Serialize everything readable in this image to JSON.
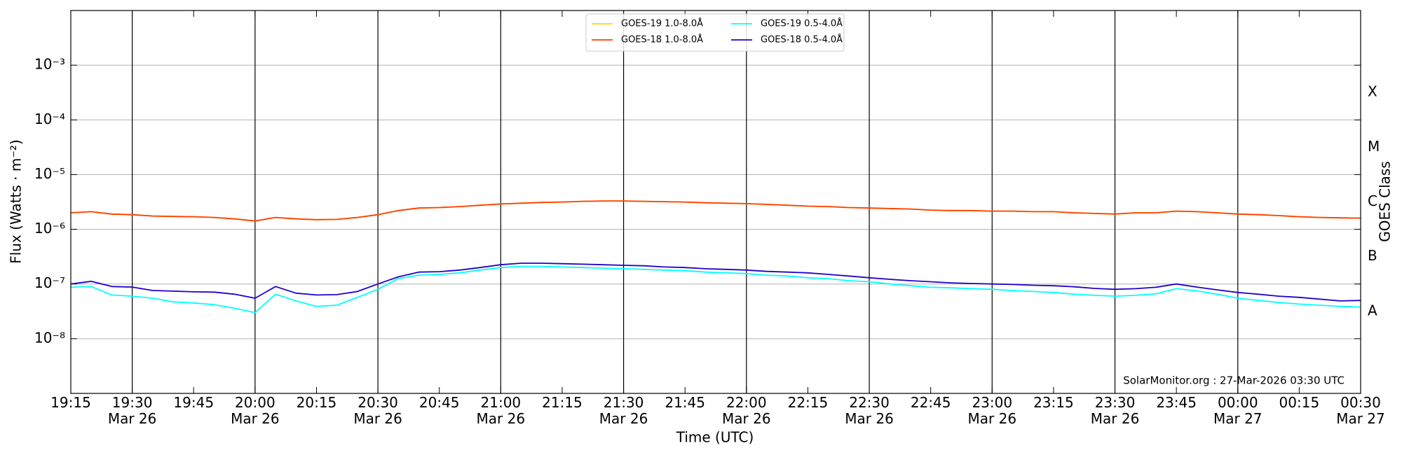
{
  "chart_data": {
    "type": "line",
    "xlabel": "Time (UTC)",
    "ylabel": "Flux (Watts · m⁻²)",
    "y2label": "GOES Class",
    "annotation": "SolarMonitor.org : 27-Mar-2026 03:30 UTC",
    "yscale": "log",
    "ylim": [
      1e-09,
      0.01
    ],
    "yticks": [
      {
        "value": 1e-08,
        "label": "10⁻⁸"
      },
      {
        "value": 1e-07,
        "label": "10⁻⁷"
      },
      {
        "value": 1e-06,
        "label": "10⁻⁶"
      },
      {
        "value": 1e-05,
        "label": "10⁻⁵"
      },
      {
        "value": 0.0001,
        "label": "10⁻⁴"
      },
      {
        "value": 0.001,
        "label": "10⁻³"
      }
    ],
    "y2lim": [
      1e-09,
      0.01
    ],
    "y2ticks": [
      {
        "value": 3.16e-08,
        "label": "A"
      },
      {
        "value": 3.16e-07,
        "label": "B"
      },
      {
        "value": 3.16e-06,
        "label": "C"
      },
      {
        "value": 3.16e-05,
        "label": "M"
      },
      {
        "value": 0.000316,
        "label": "X"
      }
    ],
    "xlim": [
      "Mar 26 19:15",
      "Mar 27 00:30"
    ],
    "xticks": [
      {
        "value": "Mar 26 19:15",
        "label": "19:15"
      },
      {
        "value": "Mar 26 19:30",
        "label": "19:30\nMar 26"
      },
      {
        "value": "Mar 26 19:45",
        "label": "19:45"
      },
      {
        "value": "Mar 26 20:00",
        "label": "20:00\nMar 26"
      },
      {
        "value": "Mar 26 20:15",
        "label": "20:15"
      },
      {
        "value": "Mar 26 20:30",
        "label": "20:30\nMar 26"
      },
      {
        "value": "Mar 26 20:45",
        "label": "20:45"
      },
      {
        "value": "Mar 26 21:00",
        "label": "21:00\nMar 26"
      },
      {
        "value": "Mar 26 21:15",
        "label": "21:15"
      },
      {
        "value": "Mar 26 21:30",
        "label": "21:30\nMar 26"
      },
      {
        "value": "Mar 26 21:45",
        "label": "21:45"
      },
      {
        "value": "Mar 26 22:00",
        "label": "22:00\nMar 26"
      },
      {
        "value": "Mar 26 22:15",
        "label": "22:15"
      },
      {
        "value": "Mar 26 22:30",
        "label": "22:30\nMar 26"
      },
      {
        "value": "Mar 26 22:45",
        "label": "22:45"
      },
      {
        "value": "Mar 26 23:00",
        "label": "23:00\nMar 26"
      },
      {
        "value": "Mar 26 23:15",
        "label": "23:15"
      },
      {
        "value": "Mar 26 23:30",
        "label": "23:30\nMar 26"
      },
      {
        "value": "Mar 26 23:45",
        "label": "23:45"
      },
      {
        "value": "Mar 27 00:00",
        "label": "00:00\nMar 27"
      },
      {
        "value": "Mar 27 00:15",
        "label": "00:15"
      },
      {
        "value": "Mar 27 00:30",
        "label": "00:30\nMar 27"
      }
    ],
    "xgrid": [
      "Mar 26 19:30",
      "Mar 26 20:00",
      "Mar 26 20:30",
      "Mar 26 21:00",
      "Mar 26 21:30",
      "Mar 26 22:00",
      "Mar 26 22:30",
      "Mar 26 23:00",
      "Mar 26 23:30",
      "Mar 27 00:00"
    ],
    "ygrid": true,
    "legend": "upper center",
    "x": [
      "Mar 26 19:15",
      "Mar 26 19:20",
      "Mar 26 19:25",
      "Mar 26 19:30",
      "Mar 26 19:35",
      "Mar 26 19:40",
      "Mar 26 19:45",
      "Mar 26 19:50",
      "Mar 26 19:55",
      "Mar 26 20:00",
      "Mar 26 20:05",
      "Mar 26 20:10",
      "Mar 26 20:15",
      "Mar 26 20:20",
      "Mar 26 20:25",
      "Mar 26 20:30",
      "Mar 26 20:35",
      "Mar 26 20:40",
      "Mar 26 20:45",
      "Mar 26 20:50",
      "Mar 26 20:55",
      "Mar 26 21:00",
      "Mar 26 21:05",
      "Mar 26 21:10",
      "Mar 26 21:15",
      "Mar 26 21:20",
      "Mar 26 21:25",
      "Mar 26 21:30",
      "Mar 26 21:35",
      "Mar 26 21:40",
      "Mar 26 21:45",
      "Mar 26 21:50",
      "Mar 26 21:55",
      "Mar 26 22:00",
      "Mar 26 22:05",
      "Mar 26 22:10",
      "Mar 26 22:15",
      "Mar 26 22:20",
      "Mar 26 22:25",
      "Mar 26 22:30",
      "Mar 26 22:35",
      "Mar 26 22:40",
      "Mar 26 22:45",
      "Mar 26 22:50",
      "Mar 26 22:55",
      "Mar 26 23:00",
      "Mar 26 23:05",
      "Mar 26 23:10",
      "Mar 26 23:15",
      "Mar 26 23:20",
      "Mar 26 23:25",
      "Mar 26 23:30",
      "Mar 26 23:35",
      "Mar 26 23:40",
      "Mar 26 23:45",
      "Mar 26 23:50",
      "Mar 26 23:55",
      "Mar 27 00:00",
      "Mar 27 00:05",
      "Mar 27 00:10",
      "Mar 27 00:15",
      "Mar 27 00:20",
      "Mar 27 00:25",
      "Mar 27 00:30"
    ],
    "series": [
      {
        "name": "GOES-19 1.0-8.0Å",
        "color": "#ffd700",
        "values": [
          2e-06,
          2.1e-06,
          1.9e-06,
          1.85e-06,
          1.75e-06,
          1.72e-06,
          1.7e-06,
          1.65e-06,
          1.55e-06,
          1.42e-06,
          1.65e-06,
          1.55e-06,
          1.5e-06,
          1.52e-06,
          1.65e-06,
          1.85e-06,
          2.2e-06,
          2.45e-06,
          2.5e-06,
          2.6e-06,
          2.75e-06,
          2.9e-06,
          3e-06,
          3.1e-06,
          3.15e-06,
          3.25e-06,
          3.3e-06,
          3.3e-06,
          3.25e-06,
          3.2e-06,
          3.15e-06,
          3.05e-06,
          3e-06,
          2.95e-06,
          2.85e-06,
          2.75e-06,
          2.65e-06,
          2.6e-06,
          2.5e-06,
          2.45e-06,
          2.4e-06,
          2.35e-06,
          2.25e-06,
          2.2e-06,
          2.2e-06,
          2.15e-06,
          2.15e-06,
          2.1e-06,
          2.1e-06,
          2e-06,
          1.95e-06,
          1.9e-06,
          2e-06,
          2e-06,
          2.15e-06,
          2.1e-06,
          2e-06,
          1.9e-06,
          1.85e-06,
          1.78e-06,
          1.7e-06,
          1.65e-06,
          1.62e-06,
          1.6e-06
        ]
      },
      {
        "name": "GOES-18 1.0-8.0Å",
        "color": "#ff3d00",
        "values": [
          2e-06,
          2.1e-06,
          1.9e-06,
          1.85e-06,
          1.75e-06,
          1.72e-06,
          1.7e-06,
          1.65e-06,
          1.55e-06,
          1.42e-06,
          1.65e-06,
          1.55e-06,
          1.5e-06,
          1.52e-06,
          1.65e-06,
          1.85e-06,
          2.2e-06,
          2.45e-06,
          2.5e-06,
          2.6e-06,
          2.75e-06,
          2.9e-06,
          3e-06,
          3.1e-06,
          3.15e-06,
          3.25e-06,
          3.3e-06,
          3.3e-06,
          3.25e-06,
          3.2e-06,
          3.15e-06,
          3.05e-06,
          3e-06,
          2.95e-06,
          2.85e-06,
          2.75e-06,
          2.65e-06,
          2.6e-06,
          2.5e-06,
          2.45e-06,
          2.4e-06,
          2.35e-06,
          2.25e-06,
          2.2e-06,
          2.2e-06,
          2.15e-06,
          2.15e-06,
          2.1e-06,
          2.1e-06,
          2e-06,
          1.95e-06,
          1.9e-06,
          2e-06,
          2e-06,
          2.15e-06,
          2.1e-06,
          2e-06,
          1.9e-06,
          1.85e-06,
          1.78e-06,
          1.7e-06,
          1.65e-06,
          1.62e-06,
          1.6e-06
        ]
      },
      {
        "name": "GOES-19 0.5-4.0Å",
        "color": "#00ffff",
        "values": [
          8.7e-08,
          9e-08,
          6.3e-08,
          6e-08,
          5.5e-08,
          4.7e-08,
          4.5e-08,
          4.2e-08,
          3.6e-08,
          3e-08,
          6.5e-08,
          4.9e-08,
          3.9e-08,
          4.1e-08,
          5.7e-08,
          8e-08,
          1.25e-07,
          1.45e-07,
          1.5e-07,
          1.6e-07,
          1.8e-07,
          2e-07,
          2.1e-07,
          2.1e-07,
          2.05e-07,
          2e-07,
          1.95e-07,
          1.9e-07,
          1.85e-07,
          1.8e-07,
          1.75e-07,
          1.65e-07,
          1.6e-07,
          1.55e-07,
          1.45e-07,
          1.4e-07,
          1.3e-07,
          1.25e-07,
          1.15e-07,
          1.1e-07,
          1e-07,
          9.3e-08,
          8.7e-08,
          8.5e-08,
          8.2e-08,
          8e-08,
          7.6e-08,
          7.3e-08,
          7e-08,
          6.5e-08,
          6.2e-08,
          6e-08,
          6.2e-08,
          6.6e-08,
          8.2e-08,
          7.5e-08,
          6.5e-08,
          5.5e-08,
          5e-08,
          4.6e-08,
          4.3e-08,
          4.1e-08,
          3.9e-08,
          3.8e-08
        ]
      },
      {
        "name": "GOES-18 0.5-4.0Å",
        "color": "#2200cc",
        "values": [
          1e-07,
          1.12e-07,
          9e-08,
          8.8e-08,
          7.6e-08,
          7.4e-08,
          7.2e-08,
          7.1e-08,
          6.5e-08,
          5.5e-08,
          9e-08,
          6.8e-08,
          6.3e-08,
          6.4e-08,
          7.3e-08,
          1e-07,
          1.35e-07,
          1.65e-07,
          1.68e-07,
          1.8e-07,
          2e-07,
          2.25e-07,
          2.4e-07,
          2.4e-07,
          2.35e-07,
          2.3e-07,
          2.25e-07,
          2.2e-07,
          2.15e-07,
          2.05e-07,
          2e-07,
          1.9e-07,
          1.85e-07,
          1.8e-07,
          1.7e-07,
          1.65e-07,
          1.6e-07,
          1.5e-07,
          1.4e-07,
          1.3e-07,
          1.22e-07,
          1.15e-07,
          1.1e-07,
          1.05e-07,
          1.02e-07,
          1e-07,
          9.8e-08,
          9.5e-08,
          9.3e-08,
          8.9e-08,
          8.3e-08,
          8e-08,
          8.2e-08,
          8.7e-08,
          1e-07,
          8.8e-08,
          7.8e-08,
          7e-08,
          6.5e-08,
          6e-08,
          5.7e-08,
          5.3e-08,
          4.9e-08,
          5e-08
        ]
      }
    ]
  }
}
